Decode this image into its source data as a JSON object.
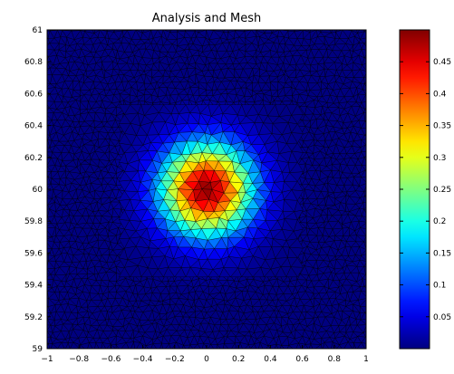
{
  "chart_data": [
    {
      "type": "heatmap",
      "title": "Analysis and Mesh",
      "xlabel": "",
      "ylabel": "",
      "xlim": [
        -1,
        1
      ],
      "ylim": [
        59,
        61
      ],
      "x_ticks": [
        -1,
        -0.8,
        -0.6,
        -0.4,
        -0.2,
        0,
        0.2,
        0.4,
        0.6,
        0.8,
        1
      ],
      "x_tick_labels": [
        "−1",
        "−0.8",
        "−0.6",
        "−0.4",
        "−0.2",
        "0",
        "0.2",
        "0.4",
        "0.6",
        "0.8",
        "1"
      ],
      "y_ticks": [
        59,
        59.2,
        59.4,
        59.6,
        59.8,
        60,
        60.2,
        60.4,
        60.6,
        60.8,
        61
      ],
      "y_tick_labels": [
        "59",
        "59.2",
        "59.4",
        "59.6",
        "59.8",
        "60",
        "60.2",
        "60.4",
        "60.6",
        "60.8",
        "61"
      ],
      "field": {
        "peak_value": 0.49,
        "peak_x": 0,
        "peak_y": 60,
        "decay_width": 0.2
      },
      "mesh": {
        "edges_visible": true,
        "edge_color": "#000000"
      },
      "colormap": "jet",
      "grid": false
    },
    {
      "type": "colorbar",
      "colormap": "jet",
      "range": [
        0,
        0.5
      ],
      "ticks": [
        0.05,
        0.1,
        0.15,
        0.2,
        0.25,
        0.3,
        0.35,
        0.4,
        0.45
      ],
      "tick_labels": [
        "0.05",
        "0.1",
        "0.15",
        "0.2",
        "0.25",
        "0.3",
        "0.35",
        "0.4",
        "0.45"
      ]
    }
  ]
}
